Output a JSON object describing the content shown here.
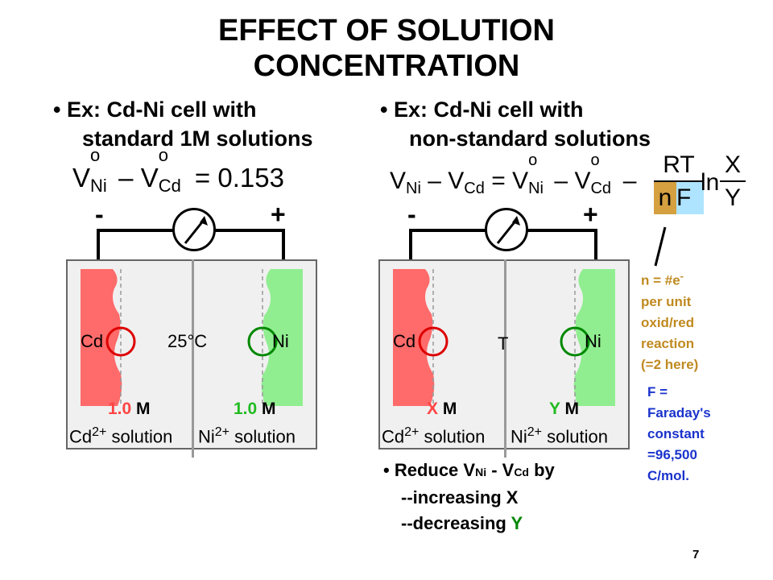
{
  "title": {
    "line1": "EFFECT OF SOLUTION",
    "line2": "CONCENTRATION"
  },
  "left": {
    "bullet_line1": "• Ex:  Cd-Ni cell with",
    "bullet_line2": "standard 1M solutions",
    "eq_v1": "V",
    "eq_o1": "o",
    "eq_sub1": "Ni",
    "eq_minus": " – ",
    "eq_v2": "V",
    "eq_o2": "o",
    "eq_sub2": "Cd",
    "eq_rhs": " = 0.153",
    "minus_sign": "-",
    "plus_sign": "+",
    "cd_label": "Cd",
    "ni_label": "Ni",
    "temp": "25°C",
    "conc_left_value": "1.0",
    "conc_left_unit": "M",
    "conc_right_value": "1.0",
    "conc_right_unit": "M",
    "sol_left_ion": "Cd",
    "sol_left_charge": "2+",
    "sol_left_word": " solution",
    "sol_right_ion": "Ni",
    "sol_right_charge": "2+",
    "sol_right_word": " solution"
  },
  "right": {
    "bullet_line1": "• Ex:  Cd-Ni cell with",
    "bullet_line2": "non-standard solutions",
    "eq_lhs_v1": "V",
    "eq_lhs_sub1": "Ni",
    "eq_lhs_minus": " – ",
    "eq_lhs_v2": "V",
    "eq_lhs_sub2": "Cd",
    "eq_equals": " = ",
    "eq_v1": "V",
    "eq_o1": "o",
    "eq_sub1": "Ni",
    "eq_minus": " – ",
    "eq_v2": "V",
    "eq_o2": "o",
    "eq_sub2": "Cd",
    "eq_minus2": " – ",
    "frac_num": "RT",
    "frac_den_n": "n",
    "frac_den_f": "F",
    "ln": "ln",
    "ln_num": "X",
    "ln_den": "Y",
    "minus_sign": "-",
    "plus_sign": "+",
    "cd_label": "Cd",
    "ni_label": "Ni",
    "temp": "T",
    "conc_left_value": "X",
    "conc_left_unit": "M",
    "conc_right_value": "Y",
    "conc_right_unit": "M",
    "sol_left_ion": "Cd",
    "sol_left_charge": "2+",
    "sol_left_word": " solution",
    "sol_right_ion": "Ni",
    "sol_right_charge": "2+",
    "sol_right_word": " solution"
  },
  "n_note": [
    "n = #e",
    "-",
    "per unit",
    "oxid/red",
    "reaction",
    "(=2 here)"
  ],
  "f_note": [
    "F =",
    "Faraday's",
    "constant",
    "=96,500",
    "C/mol."
  ],
  "reduce": {
    "prefix": "• Reduce V",
    "sub_ni": "Ni",
    "mid": " - V",
    "sub_cd": "Cd",
    "suffix": " by",
    "line2": "--increasing X",
    "line3_prefix": "--decreasing ",
    "line3_y": "Y"
  },
  "page_number": "7",
  "colors": {
    "cd_fill": "#ff6a6a",
    "ni_fill": "#90ee90",
    "ring_red": "#dd0000",
    "ring_green": "#008800",
    "n_orange": "#d4a040",
    "f_blue": "#aee4ff",
    "note_tan": "#c08a20",
    "note_blue": "#1a33cc",
    "y_green": "#008800"
  }
}
